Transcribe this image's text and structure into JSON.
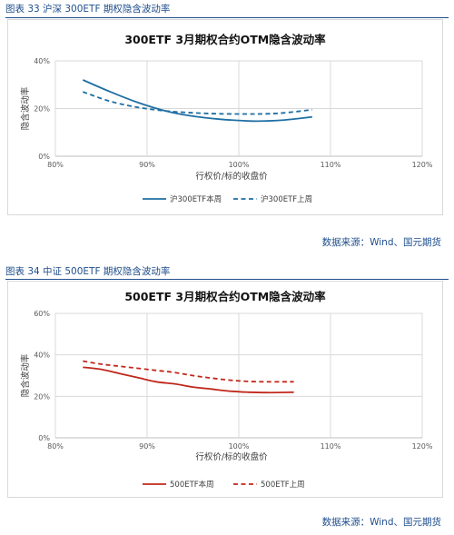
{
  "figures": [
    {
      "caption": "图表 33 沪深 300ETF 期权隐含波动率",
      "source": "数据来源：Wind、国元期货",
      "color": "#1f6fa3"
    },
    {
      "caption": "图表 34 中证 500ETF 期权隐含波动率",
      "source": "数据来源：Wind、国元期货",
      "color": "#c0281b"
    }
  ],
  "chart_data": [
    {
      "type": "line",
      "title": "300ETF  3月期权合约OTM隐含波动率",
      "xlabel": "行权价/标的收盘价",
      "ylabel": "隐含波动率",
      "xlim": [
        0.8,
        1.2
      ],
      "ylim": [
        0,
        0.4
      ],
      "x_ticks": [
        "80%",
        "90%",
        "100%",
        "110%",
        "120%"
      ],
      "y_ticks": [
        "0%",
        "20%",
        "40%"
      ],
      "legend_position": "bottom",
      "grid": true,
      "series": [
        {
          "name": "沪300ETF本周",
          "style": "solid",
          "x": [
            0.83,
            0.86,
            0.89,
            0.92,
            0.95,
            0.98,
            1.01,
            1.03,
            1.05,
            1.08
          ],
          "y": [
            0.32,
            0.27,
            0.225,
            0.19,
            0.168,
            0.155,
            0.148,
            0.148,
            0.152,
            0.165
          ]
        },
        {
          "name": "沪300ETF上周",
          "style": "dashed",
          "x": [
            0.83,
            0.86,
            0.89,
            0.92,
            0.95,
            0.98,
            1.01,
            1.03,
            1.05,
            1.08
          ],
          "y": [
            0.27,
            0.23,
            0.205,
            0.19,
            0.182,
            0.178,
            0.177,
            0.178,
            0.182,
            0.195
          ]
        }
      ]
    },
    {
      "type": "line",
      "title": "500ETF  3月期权合约OTM隐含波动率",
      "xlabel": "行权价/标的收盘价",
      "ylabel": "隐含波动率",
      "xlim": [
        0.8,
        1.2
      ],
      "ylim": [
        0,
        0.6
      ],
      "x_ticks": [
        "80%",
        "90%",
        "100%",
        "110%",
        "120%"
      ],
      "y_ticks": [
        "0%",
        "20%",
        "40%",
        "60%"
      ],
      "legend_position": "bottom",
      "grid": true,
      "series": [
        {
          "name": "500ETF本周",
          "style": "solid",
          "x": [
            0.83,
            0.85,
            0.87,
            0.89,
            0.91,
            0.93,
            0.95,
            0.97,
            0.99,
            1.01,
            1.03,
            1.05,
            1.06
          ],
          "y": [
            0.34,
            0.33,
            0.31,
            0.29,
            0.27,
            0.26,
            0.245,
            0.235,
            0.225,
            0.22,
            0.218,
            0.219,
            0.22
          ]
        },
        {
          "name": "500ETF上周",
          "style": "dashed",
          "x": [
            0.83,
            0.85,
            0.87,
            0.89,
            0.91,
            0.93,
            0.95,
            0.97,
            0.99,
            1.01,
            1.03,
            1.05,
            1.06
          ],
          "y": [
            0.37,
            0.355,
            0.345,
            0.335,
            0.325,
            0.315,
            0.3,
            0.288,
            0.278,
            0.272,
            0.27,
            0.27,
            0.27
          ]
        }
      ]
    }
  ]
}
